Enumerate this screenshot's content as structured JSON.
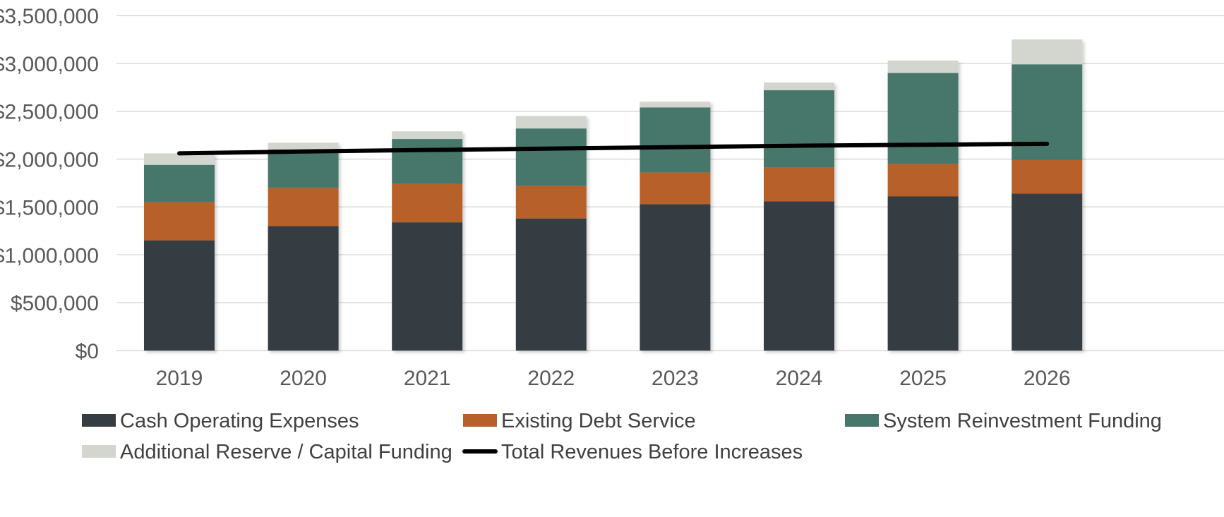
{
  "chart_data": {
    "type": "bar",
    "stacked": true,
    "title": "",
    "xlabel": "",
    "ylabel": "",
    "categories": [
      "2019",
      "2020",
      "2021",
      "2022",
      "2023",
      "2024",
      "2025",
      "2026"
    ],
    "ylim": [
      0,
      3500000
    ],
    "yticks": [
      0,
      500000,
      1000000,
      1500000,
      2000000,
      2500000,
      3000000,
      3500000
    ],
    "ytick_labels": [
      "$0",
      "$500,000",
      "$1,000,000",
      "$1,500,000",
      "$2,000,000",
      "$2,500,000",
      "$3,000,000",
      "$3,500,000"
    ],
    "grid": true,
    "legend_position": "bottom",
    "series": [
      {
        "name": "Cash Operating Expenses",
        "color": "#363d42",
        "values": [
          1150000,
          1300000,
          1340000,
          1380000,
          1530000,
          1560000,
          1610000,
          1640000
        ]
      },
      {
        "name": "Existing Debt Service",
        "color": "#b8602c",
        "values": [
          400000,
          400000,
          400000,
          340000,
          330000,
          350000,
          340000,
          350000
        ]
      },
      {
        "name": "System Reinvestment Funding",
        "color": "#47766a",
        "values": [
          390000,
          400000,
          470000,
          600000,
          680000,
          810000,
          950000,
          1000000
        ]
      },
      {
        "name": "Additional Reserve / Capital Funding",
        "color": "#d3d5cf",
        "values": [
          120000,
          70000,
          80000,
          130000,
          60000,
          80000,
          130000,
          260000
        ]
      }
    ],
    "line_series": {
      "name": "Total Revenues Before Increases",
      "color": "#000000",
      "values": [
        2060000,
        2080000,
        2095000,
        2110000,
        2125000,
        2140000,
        2150000,
        2160000
      ]
    }
  }
}
